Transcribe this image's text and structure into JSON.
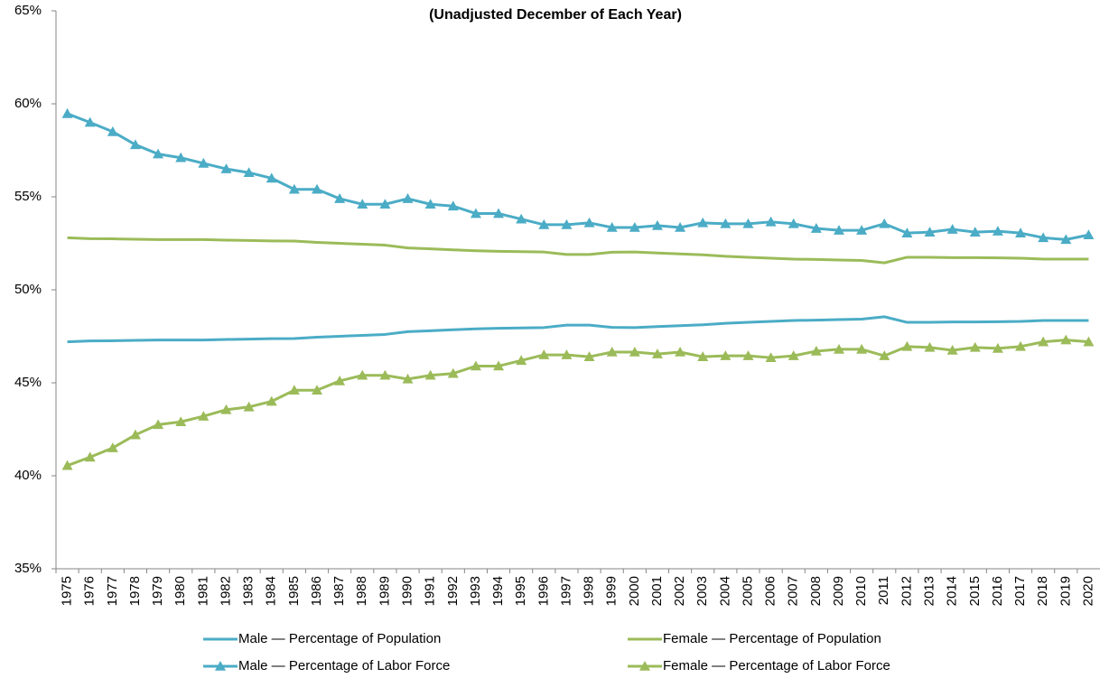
{
  "chart_data": {
    "type": "line",
    "subtitle": "(Unadjusted December of Each Year)",
    "categories": [
      "1975",
      "1976",
      "1977",
      "1978",
      "1979",
      "1980",
      "1981",
      "1982",
      "1983",
      "1984",
      "1985",
      "1986",
      "1987",
      "1988",
      "1989",
      "1990",
      "1991",
      "1992",
      "1993",
      "1994",
      "1995",
      "1996",
      "1997",
      "1998",
      "1999",
      "2000",
      "2001",
      "2002",
      "2003",
      "2004",
      "2005",
      "2006",
      "2007",
      "2008",
      "2009",
      "2010",
      "2011",
      "2012",
      "2013",
      "2014",
      "2015",
      "2016",
      "2017",
      "2018",
      "2019",
      "2020"
    ],
    "ylim": [
      35,
      65
    ],
    "yticks": [
      {
        "value": 35,
        "label": "35%"
      },
      {
        "value": 40,
        "label": "40%"
      },
      {
        "value": 45,
        "label": "45%"
      },
      {
        "value": 50,
        "label": "50%"
      },
      {
        "value": 55,
        "label": "55%"
      },
      {
        "value": 60,
        "label": "60%"
      },
      {
        "value": 65,
        "label": "65%"
      }
    ],
    "series": [
      {
        "name": "Male — Percentage of Population",
        "color": "#4bacc6",
        "values": [
          47.2,
          47.25,
          47.26,
          47.28,
          47.3,
          47.3,
          47.3,
          47.33,
          47.35,
          47.37,
          47.38,
          47.45,
          47.5,
          47.55,
          47.6,
          47.75,
          47.8,
          47.85,
          47.9,
          47.93,
          47.95,
          47.97,
          48.1,
          48.1,
          47.98,
          47.97,
          48.02,
          48.07,
          48.12,
          48.2,
          48.25,
          48.3,
          48.35,
          48.37,
          48.4,
          48.42,
          48.55,
          48.25,
          48.25,
          48.27,
          48.27,
          48.28,
          48.3,
          48.35,
          48.35,
          48.35
        ]
      },
      {
        "name": "Female — Percentage of Population",
        "color": "#9bbb59",
        "values": [
          52.8,
          52.75,
          52.74,
          52.72,
          52.7,
          52.7,
          52.7,
          52.67,
          52.65,
          52.63,
          52.62,
          52.55,
          52.5,
          52.45,
          52.4,
          52.25,
          52.2,
          52.15,
          52.1,
          52.07,
          52.05,
          52.03,
          51.9,
          51.9,
          52.02,
          52.03,
          51.98,
          51.93,
          51.88,
          51.8,
          51.75,
          51.7,
          51.65,
          51.63,
          51.6,
          51.58,
          51.45,
          51.75,
          51.75,
          51.73,
          51.73,
          51.72,
          51.7,
          51.65,
          51.65,
          51.65
        ]
      },
      {
        "name": "Male — Percentage of Labor Force",
        "color": "#4bacc6",
        "marker": "triangle",
        "values": [
          59.47,
          59.0,
          58.5,
          57.8,
          57.3,
          57.1,
          56.8,
          56.5,
          56.3,
          56.0,
          55.4,
          55.4,
          54.9,
          54.6,
          54.6,
          54.9,
          54.6,
          54.5,
          54.1,
          54.1,
          53.8,
          53.5,
          53.5,
          53.6,
          53.35,
          53.35,
          53.45,
          53.35,
          53.6,
          53.55,
          53.55,
          53.65,
          53.55,
          53.3,
          53.2,
          53.2,
          53.55,
          53.05,
          53.1,
          53.25,
          53.1,
          53.15,
          53.05,
          52.8,
          52.7,
          52.95
        ]
      },
      {
        "name": "Female — Percentage of Labor Force",
        "color": "#9bbb59",
        "marker": "triangle",
        "values": [
          40.55,
          41.0,
          41.5,
          42.2,
          42.75,
          42.9,
          43.2,
          43.55,
          43.7,
          44.0,
          44.6,
          44.6,
          45.1,
          45.4,
          45.4,
          45.2,
          45.4,
          45.5,
          45.9,
          45.9,
          46.2,
          46.5,
          46.5,
          46.4,
          46.65,
          46.65,
          46.55,
          46.65,
          46.4,
          46.45,
          46.45,
          46.35,
          46.45,
          46.7,
          46.8,
          46.8,
          46.45,
          46.95,
          46.9,
          46.75,
          46.9,
          46.85,
          46.95,
          47.2,
          47.3,
          47.2
        ]
      }
    ]
  }
}
